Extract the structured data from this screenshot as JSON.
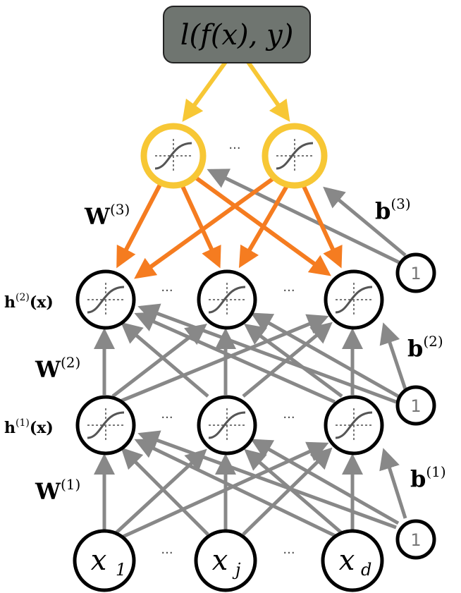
{
  "loss": {
    "text": "l(f(x), y)"
  },
  "colors": {
    "loss_fill": "#6f7570",
    "output_ring": "#f7c735",
    "output_arrow": "#f7c735",
    "w3_arrow": "#f57c20",
    "gray_arrow": "#888888",
    "node_stroke": "#000000"
  },
  "layers": {
    "output": {
      "weight_label": "W",
      "weight_sup": "(3)",
      "bias_label": "b",
      "bias_sup": "(3)"
    },
    "hidden2": {
      "label": "h",
      "label_sup": "(2)",
      "label_arg": "(x)",
      "weight_label": "W",
      "weight_sup": "(2)",
      "bias_label": "b",
      "bias_sup": "(2)"
    },
    "hidden1": {
      "label": "h",
      "label_sup": "(1)",
      "label_arg": "(x)",
      "weight_label": "W",
      "weight_sup": "(1)",
      "bias_label": "b",
      "bias_sup": "(1)"
    },
    "input": {
      "nodes": [
        {
          "name": "x",
          "sub": "1"
        },
        {
          "name": "x",
          "sub": "j"
        },
        {
          "name": "x",
          "sub": "d"
        }
      ]
    }
  },
  "bias_value": "1",
  "ellipsis": "···"
}
